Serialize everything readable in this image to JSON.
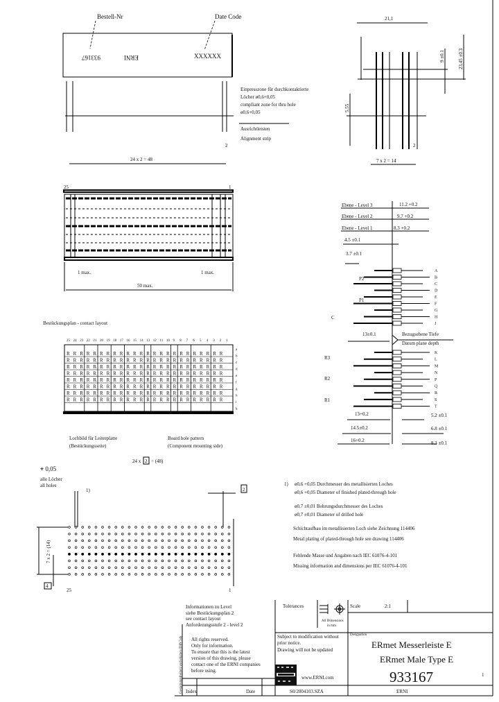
{
  "top_view": {
    "order_no_label": "Bestell-Nr",
    "date_code_label": "Date Code",
    "part_marking": "933167",
    "brand_marking": "ERNI",
    "date_marking": "XXXXXX",
    "press_fit_note": [
      "Einpresszone für durchkontaktierte",
      "Löcher ø0,6+0,05",
      "compliant zone for thru hole",
      "ø0,6+0,05"
    ],
    "alignment_de": "Ausrichtleisten",
    "alignment_en": "Alignment strip",
    "pitch_dim": "24 x 2 = 48",
    "small_dim": "2"
  },
  "side_view": {
    "width_dim": "21,1",
    "height_dim": "23,45 ±0.3",
    "upper_dim": "9 ±0.1",
    "lower_dim": "5.55",
    "pitch": "2",
    "rows_dim": "7 x 2 = 14"
  },
  "bottom_view": {
    "number_left": "25",
    "number_right": "1",
    "left_max": "1 max.",
    "right_max": "1 max.",
    "length": "50 max."
  },
  "contact_layout": {
    "title": "Bestückungsplan - contact layout",
    "columns": [
      "25",
      "24",
      "23",
      "22",
      "21",
      "20",
      "19",
      "18",
      "17",
      "16",
      "15",
      "14",
      "13",
      "12",
      "11",
      "10",
      "9",
      "8",
      "7",
      "6",
      "5",
      "4",
      "3",
      "2",
      "1"
    ],
    "rows": [
      "a",
      "b",
      "c",
      "d",
      "e",
      "f",
      "g",
      "h",
      "i",
      "k"
    ],
    "contact_letter": "R"
  },
  "hole_pattern": {
    "label_de": [
      "Lochbild für Leiterplatte",
      "(Bestückungsseite)"
    ],
    "label_en": [
      "Board hole pattern",
      "(Component mounting side)"
    ],
    "pitch_dim_prefix": "24 x",
    "pitch_box": "2",
    "pitch_dim_suffix": "= (48)",
    "position_tol": "⌖ 0,05",
    "all_holes": [
      "alle Löcher",
      "all holes"
    ],
    "note_ref": "1)",
    "edge_box": "2",
    "rows_dim": "7 x 2 = (14)",
    "offset_box": "4",
    "col_25": "25",
    "col_1": "1"
  },
  "levels": {
    "level3": "Ebene - Level 3",
    "level2": "Ebene - Level 2",
    "level1": "Ebene - Level 1",
    "dim_level3": "11.2 +0.2",
    "dim_level2": "9.7 +0.2",
    "dim_level1": "8.3 +0.2",
    "dim_45": "4.5 ±0.1",
    "dim_37": "3.7 ±0.1",
    "p2": "P2",
    "p1": "P1",
    "c": "C",
    "r3": "R3",
    "r2": "R2",
    "r1": "R1",
    "dim_13": "13±0.1",
    "datum_de": "Bezugsebene Tiefe",
    "datum_en": "Datum plane depth",
    "row_letters": [
      "A",
      "B",
      "C",
      "D",
      "E",
      "F",
      "G",
      "H",
      "J",
      "K",
      "L",
      "M",
      "N",
      "P",
      "Q",
      "R",
      "S",
      "T"
    ],
    "dim_13b": "13+0.2",
    "dim_145": "14.5±0.2",
    "dim_16": "16+0.2",
    "dim_52": "5.2 ±0.1",
    "dim_68": "6.8 ±0.1",
    "dim_83": "8.3 ±0.1"
  },
  "notes": {
    "n1_ref": "1)",
    "n1_de": "ø0,6 +0,05 Durchmesser des metallisierten Loches",
    "n1_en": "ø0,6 +0,05 Diameter of finished plated-through hole",
    "n2_de": "ø0,7 ±0,01 Bohrungsdurchmesser des Loches",
    "n2_en": "ø0,7 ±0,01 Diameter of drilled hole",
    "n3_de": "Schichtaufbau im metallisierten Loch siehe Zeichnung 114406",
    "n3_en": "Metal plating of plated-through hole see drawing 114406",
    "n4_de": "Fehlende Masse und Angaben nach IEC 61076-4-101",
    "n4_en": "Missing information and dimensions per IEC 61076-4-101"
  },
  "title_block": {
    "info": [
      "Informationen zu Level",
      "siehe Bestückungsplan 2",
      "see contact layout",
      "Anforderungsstufe 2 - level 2"
    ],
    "rights": [
      "All rights reserved.",
      "Only for information.",
      "To ensure that this is the latest",
      "version of this drawing, please",
      "contact one of the ERNI companies",
      "before using."
    ],
    "vertical_note": "Gestaltungsfreiheit vorbehalten (DIN 34)",
    "tolerances": "Tolerances",
    "dimensions_unit": [
      "All Dimensions",
      "in mm"
    ],
    "subject": [
      "Subject to modification without",
      "prior notice.",
      "Drawing will not be updated"
    ],
    "website": "www.ERNI.com",
    "scale_label": "Scale",
    "scale_value": "2:1",
    "designation_label": "Designation",
    "name_de": "ERmet Messerleiste E",
    "name_en": "ERmet Male Type E",
    "part_number": "933167",
    "sheet": "1",
    "index_label": "Index",
    "date_label": "Date",
    "doc_number": "S0/2004103.SZA",
    "company": "ERNI"
  }
}
